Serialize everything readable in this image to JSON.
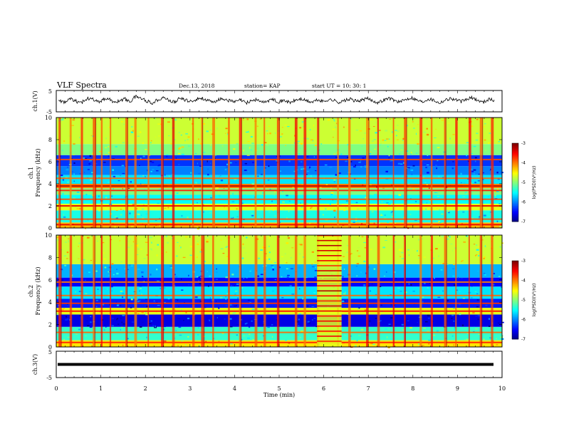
{
  "header": {
    "title": "VLF Spectra",
    "date": "Dec.13, 2018",
    "station": "station= KAP",
    "start": "start  UT =   10: 30: 1"
  },
  "chart_data": [
    {
      "type": "line",
      "panel": "ch1-waveform",
      "ylabel": "ch.1(V)",
      "ylim": [
        -5,
        5
      ],
      "ytick_labels": [
        "5",
        "-5"
      ],
      "xlim": [
        0,
        10
      ],
      "series": [
        {
          "values": [
            0.8,
            -0.6,
            1.2,
            0.3,
            -1.1,
            0.9,
            1.8,
            -0.4,
            0.5,
            1.6,
            -0.8,
            0.2,
            1.1,
            -0.3,
            2.3,
            1.4,
            0.1,
            -0.9,
            0.7,
            1.9,
            0.4,
            -0.5,
            1.3,
            0.6,
            -0.2,
            0.9,
            1.5,
            0.3,
            -0.7,
            0.8,
            1.1,
            0.2,
            -0.4,
            0.6,
            -0.9,
            0.3,
            0.7,
            -0.6,
            0.2,
            0.9,
            -0.3,
            0.4,
            -0.8,
            0.5,
            1.0,
            0.1,
            -0.5,
            0.6,
            -0.2,
            0.8,
            0.3,
            -0.6,
            0.4,
            0.9,
            -0.1,
            0.5,
            1.2,
            0.2,
            -0.7,
            0.6,
            1.4,
            0.3,
            -0.4,
            0.9,
            1.7,
            0.5,
            -0.3,
            1.1,
            0.6,
            -0.8,
            0.4,
            1.3,
            0.7,
            -0.2,
            0.8,
            1.6,
            0.4,
            -0.5,
            1.0,
            0.3
          ]
        }
      ]
    },
    {
      "type": "heatmap",
      "panel": "ch1-spectrogram",
      "ylabel": "ch.1\nFrequency (kHz)",
      "ylim": [
        0,
        10
      ],
      "xlim": [
        0,
        10
      ],
      "ytick_labels": [
        "0",
        "2",
        "4",
        "6",
        "8",
        "10"
      ],
      "colorbar": {
        "label": "log(PSD)(V²/Hz)",
        "range": [
          -7,
          -3
        ],
        "tick_labels": [
          "-3",
          "-4",
          "-5",
          "-6",
          "-7"
        ]
      },
      "bands_khz": [
        {
          "from": 0.0,
          "to": 0.5,
          "level": -4.2
        },
        {
          "from": 0.5,
          "to": 1.6,
          "level": -5.4
        },
        {
          "from": 1.6,
          "to": 2.2,
          "level": -4.6
        },
        {
          "from": 2.2,
          "to": 3.0,
          "level": -5.5
        },
        {
          "from": 3.0,
          "to": 3.6,
          "level": -5.0
        },
        {
          "from": 3.6,
          "to": 4.0,
          "level": -4.0
        },
        {
          "from": 4.0,
          "to": 4.8,
          "level": -5.6
        },
        {
          "from": 4.8,
          "to": 5.6,
          "level": -6.0
        },
        {
          "from": 5.6,
          "to": 6.6,
          "level": -6.3
        },
        {
          "from": 6.6,
          "to": 7.6,
          "level": -5.0
        },
        {
          "from": 7.6,
          "to": 10.0,
          "level": -4.7
        }
      ],
      "lines_khz": [
        {
          "f": 0.3,
          "level": -3.4
        },
        {
          "f": 0.8,
          "level": -3.8
        },
        {
          "f": 2.0,
          "level": -3.4
        },
        {
          "f": 2.6,
          "level": -3.8
        },
        {
          "f": 3.4,
          "level": -3.6
        },
        {
          "f": 3.8,
          "level": -3.2
        },
        {
          "f": 4.5,
          "level": -3.9
        },
        {
          "f": 6.2,
          "level": -3.8
        }
      ],
      "bursts_min": [
        0.05,
        0.3,
        0.55,
        0.82,
        1.0,
        1.2,
        1.55,
        1.75,
        2.05,
        2.35,
        2.6,
        3.05,
        3.25,
        3.5,
        3.85,
        4.1,
        4.45,
        4.65,
        4.95,
        5.35,
        5.55,
        5.85,
        6.3,
        6.55,
        6.95,
        7.2,
        7.55,
        7.8,
        8.15,
        8.4,
        8.7,
        8.95,
        9.25,
        9.5,
        9.75
      ]
    },
    {
      "type": "heatmap",
      "panel": "ch2-spectrogram",
      "ylabel": "ch.2\nFrequency (kHz)",
      "ylim": [
        0,
        10
      ],
      "xlim": [
        0,
        10
      ],
      "ytick_labels": [
        "0",
        "2",
        "4",
        "6",
        "8",
        "10"
      ],
      "colorbar": {
        "label": "log(PSD)(V²/Hz)",
        "range": [
          -7,
          -3
        ],
        "tick_labels": [
          "-3",
          "-4",
          "-5",
          "-6",
          "-7"
        ]
      },
      "bands_khz": [
        {
          "from": 0.0,
          "to": 0.6,
          "level": -4.4
        },
        {
          "from": 0.6,
          "to": 1.8,
          "level": -5.3
        },
        {
          "from": 1.8,
          "to": 2.9,
          "level": -6.6
        },
        {
          "from": 2.9,
          "to": 3.5,
          "level": -4.6
        },
        {
          "from": 3.5,
          "to": 4.3,
          "level": -6.4
        },
        {
          "from": 4.3,
          "to": 5.4,
          "level": -5.6
        },
        {
          "from": 5.4,
          "to": 6.2,
          "level": -6.5
        },
        {
          "from": 6.2,
          "to": 7.4,
          "level": -5.8
        },
        {
          "from": 7.4,
          "to": 10.0,
          "level": -4.7
        }
      ],
      "lines_khz": [
        {
          "f": 0.4,
          "level": -3.6
        },
        {
          "f": 1.3,
          "level": -3.9
        },
        {
          "f": 3.2,
          "level": -3.5
        },
        {
          "f": 3.9,
          "level": -3.7
        },
        {
          "f": 4.6,
          "level": -3.9
        },
        {
          "f": 5.8,
          "level": -4.0
        }
      ],
      "bursts_min": [
        0.05,
        0.3,
        0.55,
        0.82,
        1.0,
        1.2,
        1.55,
        1.75,
        2.05,
        2.35,
        2.6,
        3.05,
        3.25,
        3.5,
        3.85,
        4.1,
        4.45,
        4.65,
        4.95,
        5.35,
        5.55,
        5.85,
        6.3,
        6.55,
        6.95,
        7.2,
        7.55,
        7.8,
        8.15,
        8.4,
        8.7,
        8.95,
        9.25,
        9.5,
        9.75
      ],
      "event_min": [
        5.85,
        6.4
      ]
    },
    {
      "type": "line",
      "panel": "ch3-waveform",
      "ylabel": "ch.3(V)",
      "ylim": [
        -5,
        5
      ],
      "ytick_labels": [
        "5",
        "-5"
      ],
      "xlim": [
        0,
        10
      ],
      "xlabel": "Time (min)",
      "xtick_labels": [
        "0",
        "1",
        "2",
        "3",
        "4",
        "5",
        "6",
        "7",
        "8",
        "9",
        "10"
      ],
      "series": [
        {
          "values": [
            0,
            0
          ]
        }
      ]
    }
  ]
}
